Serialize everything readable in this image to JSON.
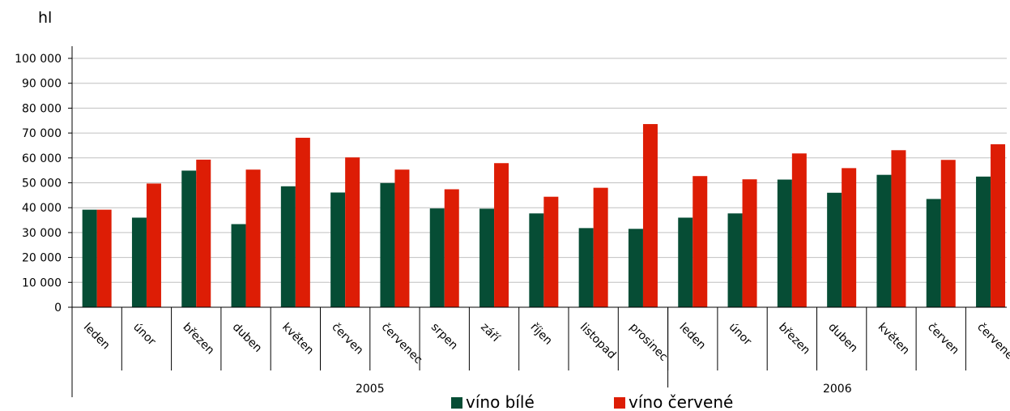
{
  "chart_data": {
    "type": "bar",
    "unit_label": "hl",
    "categories": [
      "leden",
      "únor",
      "březen",
      "duben",
      "květen",
      "červen",
      "červenec",
      "srpen",
      "září",
      "říjen",
      "listopad",
      "prosinec",
      "leden",
      "únor",
      "březen",
      "duben",
      "květen",
      "červen",
      "červenec"
    ],
    "groups": [
      {
        "label": "2005",
        "count": 12
      },
      {
        "label": "2006",
        "count": 7
      }
    ],
    "series": [
      {
        "name": "víno bílé",
        "color": "#064d35",
        "values": [
          39200,
          36000,
          54900,
          33400,
          48600,
          46100,
          49900,
          39700,
          39600,
          37700,
          31800,
          31500,
          36000,
          37700,
          51300,
          46000,
          53200,
          43500,
          52500
        ]
      },
      {
        "name": "víno červené",
        "color": "#dd1d05",
        "values": [
          39200,
          49700,
          59300,
          55300,
          68100,
          60200,
          55300,
          47400,
          57900,
          44400,
          48000,
          73600,
          52700,
          51400,
          61800,
          55900,
          63100,
          59200,
          65500
        ]
      }
    ],
    "ylim": [
      0,
      100000
    ],
    "yticks": [
      "0",
      "10 000",
      "20 000",
      "30 000",
      "40 000",
      "50 000",
      "60 000",
      "70 000",
      "80 000",
      "90 000",
      "100 000"
    ],
    "grid": true,
    "legend_position": "bottom"
  }
}
